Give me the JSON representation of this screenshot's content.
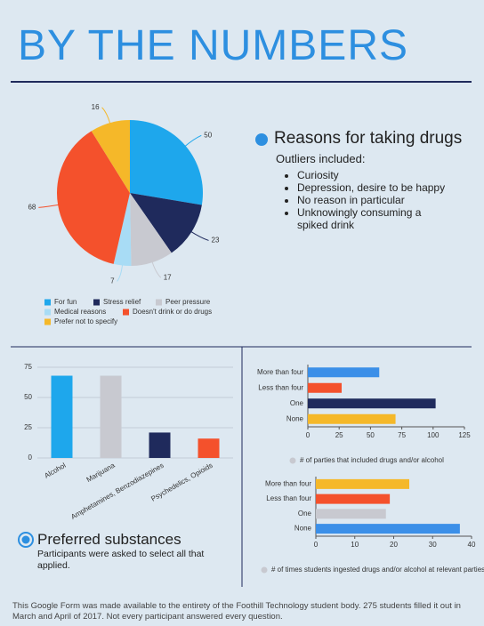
{
  "header": {
    "title": "BY THE NUMBERS"
  },
  "reasons": {
    "heading": "Reasons for taking drugs",
    "subheading": "Outliers included:",
    "items": [
      "Curiosity",
      "Depression, desire to be happy",
      "No reason in particular",
      "Unknowingly consuming a spiked drink"
    ]
  },
  "substances": {
    "heading": "Preferred substances",
    "note": "Participants were asked to select all that applied."
  },
  "footer": "This Google Form was made available to the entirety of the Foothill Technology student body. 275 students filled it out in March and April of 2017. Not every participant answered every question.",
  "chart_data": [
    {
      "type": "pie",
      "categories": [
        "For fun",
        "Stress relief",
        "Peer pressure",
        "Medical reasons",
        "Doesn't drink or do drugs",
        "Prefer not to specify"
      ],
      "values": [
        50,
        23,
        17,
        7,
        68,
        16
      ],
      "colors": [
        "#1ea7ec",
        "#1f2a5c",
        "#c8c9d0",
        "#a8dcf5",
        "#f4512c",
        "#f5b829"
      ]
    },
    {
      "type": "bar",
      "orientation": "vertical",
      "categories": [
        "Alcohol",
        "Marijuana",
        "Amphetamines, Benzodiazepines",
        "Psychedelics, Opioids"
      ],
      "values": [
        68,
        68,
        21,
        16
      ],
      "colors": [
        "#1ea7ec",
        "#c8c9d0",
        "#1f2a5c",
        "#f4512c"
      ],
      "ylim": [
        0,
        75
      ],
      "yticks": [
        0,
        25,
        50,
        75
      ],
      "grid": true
    },
    {
      "type": "bar",
      "orientation": "horizontal",
      "categories": [
        "More than four",
        "Less than four",
        "One",
        "None"
      ],
      "series": [
        {
          "name": "# of parties that included drugs and/or alcohol",
          "color": "#c8c9d0",
          "values": [
            57,
            27,
            102,
            70
          ]
        }
      ],
      "colors": [
        "#3b8fe8",
        "#f4512c",
        "#1f2a5c",
        "#f5b829"
      ],
      "xlim": [
        0,
        125
      ],
      "xticks": [
        0,
        25,
        50,
        75,
        100,
        125
      ],
      "grid": false
    },
    {
      "type": "bar",
      "orientation": "horizontal",
      "categories": [
        "More than four",
        "Less than four",
        "One",
        "None"
      ],
      "series": [
        {
          "name": "# of times students ingested drugs and/or alcohol at relevant parties",
          "color": "#c8c9d0",
          "values": [
            24,
            19,
            18,
            37
          ]
        }
      ],
      "colors": [
        "#f5b829",
        "#f4512c",
        "#c8c9d0",
        "#3b8fe8"
      ],
      "xlim": [
        0,
        40
      ],
      "xticks": [
        0,
        10,
        20,
        30,
        40
      ],
      "grid": false
    }
  ]
}
